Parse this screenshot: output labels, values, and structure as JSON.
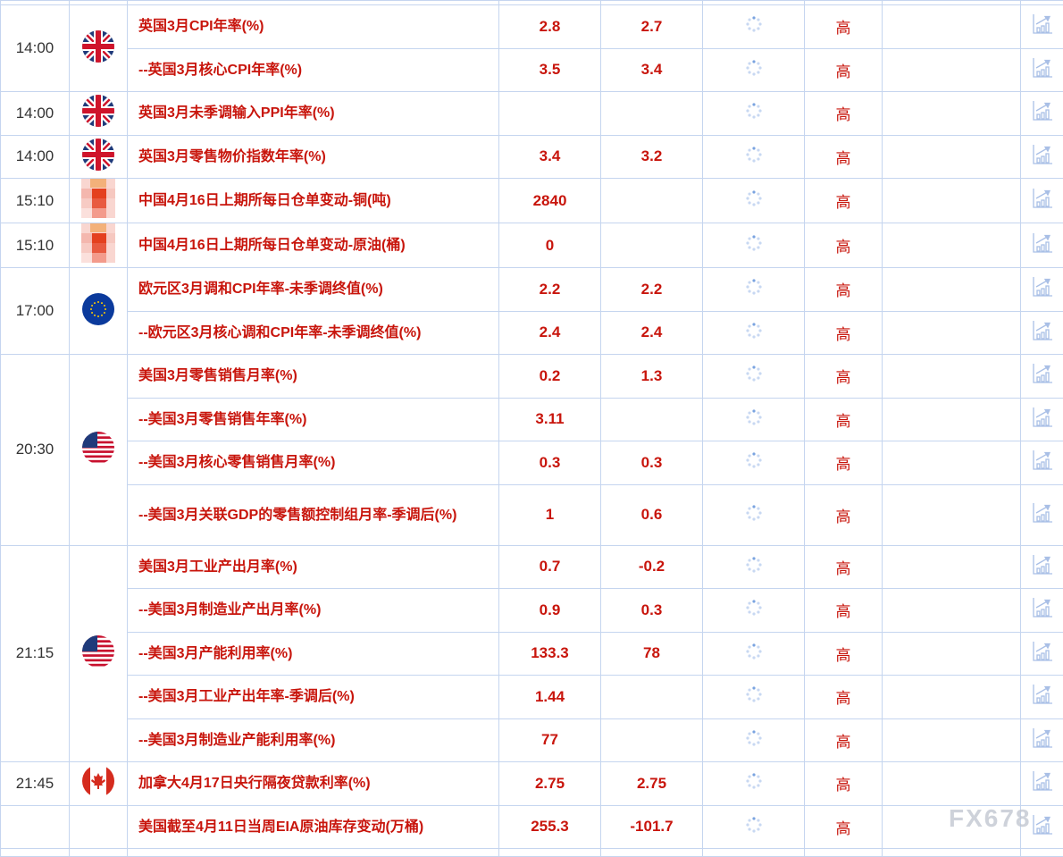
{
  "colors": {
    "text_red": "#c8150c",
    "border": "#c5d5ef",
    "icon_blue": "#9bb8e8"
  },
  "watermark": "FX678",
  "groups": [
    {
      "time": "14:00",
      "flag": "uk",
      "events": [
        {
          "name": "英国3月CPI年率(%)",
          "prev": "2.8",
          "forecast": "2.7",
          "importance": "高"
        },
        {
          "name": "--英国3月核心CPI年率(%)",
          "prev": "3.5",
          "forecast": "3.4",
          "importance": "高"
        }
      ]
    },
    {
      "time": "14:00",
      "flag": "uk",
      "events": [
        {
          "name": "英国3月未季调输入PPI年率(%)",
          "prev": "",
          "forecast": "",
          "importance": "高"
        }
      ]
    },
    {
      "time": "14:00",
      "flag": "uk",
      "events": [
        {
          "name": "英国3月零售物价指数年率(%)",
          "prev": "3.4",
          "forecast": "3.2",
          "importance": "高"
        }
      ]
    },
    {
      "time": "15:10",
      "flag": "cn",
      "events": [
        {
          "name": "中国4月16日上期所每日仓单变动-铜(吨)",
          "prev": "2840",
          "forecast": "",
          "importance": "高"
        }
      ]
    },
    {
      "time": "15:10",
      "flag": "cn",
      "events": [
        {
          "name": "中国4月16日上期所每日仓单变动-原油(桶)",
          "prev": "0",
          "forecast": "",
          "importance": "高"
        }
      ]
    },
    {
      "time": "17:00",
      "flag": "eu",
      "events": [
        {
          "name": "欧元区3月调和CPI年率-未季调终值(%)",
          "prev": "2.2",
          "forecast": "2.2",
          "importance": "高"
        },
        {
          "name": "--欧元区3月核心调和CPI年率-未季调终值(%)",
          "prev": "2.4",
          "forecast": "2.4",
          "importance": "高"
        }
      ]
    },
    {
      "time": "20:30",
      "flag": "us",
      "events": [
        {
          "name": "美国3月零售销售月率(%)",
          "prev": "0.2",
          "forecast": "1.3",
          "importance": "高"
        },
        {
          "name": "--美国3月零售销售年率(%)",
          "prev": "3.11",
          "forecast": "",
          "importance": "高"
        },
        {
          "name": "--美国3月核心零售销售月率(%)",
          "prev": "0.3",
          "forecast": "0.3",
          "importance": "高"
        },
        {
          "name": "--美国3月关联GDP的零售额控制组月率-季调后(%)",
          "prev": "1",
          "forecast": "0.6",
          "importance": "高",
          "tall": true
        }
      ]
    },
    {
      "time": "21:15",
      "flag": "us",
      "events": [
        {
          "name": "美国3月工业产出月率(%)",
          "prev": "0.7",
          "forecast": "-0.2",
          "importance": "高"
        },
        {
          "name": "--美国3月制造业产出月率(%)",
          "prev": "0.9",
          "forecast": "0.3",
          "importance": "高"
        },
        {
          "name": "--美国3月产能利用率(%)",
          "prev": "133.3",
          "forecast": "78",
          "importance": "高"
        },
        {
          "name": "--美国3月工业产出年率-季调后(%)",
          "prev": "1.44",
          "forecast": "",
          "importance": "高"
        },
        {
          "name": "--美国3月制造业产能利用率(%)",
          "prev": "77",
          "forecast": "",
          "importance": "高"
        }
      ]
    },
    {
      "time": "21:45",
      "flag": "ca",
      "events": [
        {
          "name": "加拿大4月17日央行隔夜贷款利率(%)",
          "prev": "2.75",
          "forecast": "2.75",
          "importance": "高"
        }
      ]
    },
    {
      "time": "",
      "flag": "",
      "events": [
        {
          "name": "美国截至4月11日当周EIA原油库存变动(万桶)",
          "prev": "255.3",
          "forecast": "-101.7",
          "importance": "高"
        }
      ]
    }
  ]
}
